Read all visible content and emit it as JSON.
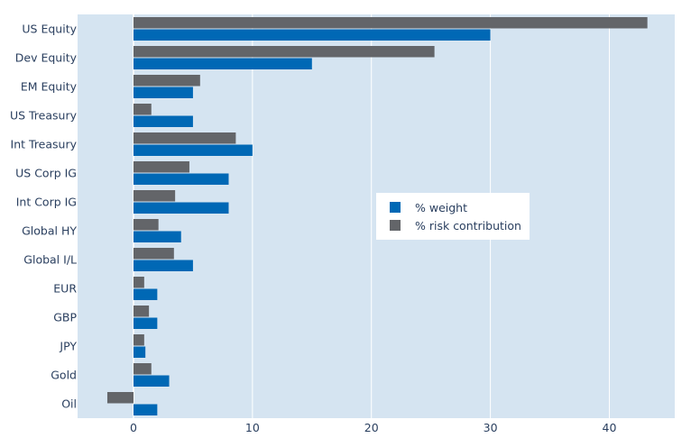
{
  "chart_data": {
    "type": "bar",
    "orientation": "horizontal",
    "categories": [
      "US Equity",
      "Dev Equity",
      "EM Equity",
      "US Treasury",
      "Int Treasury",
      "US Corp IG",
      "Int Corp IG",
      "Global HY",
      "Global I/L",
      "EUR",
      "GBP",
      "JPY",
      "Gold",
      "Oil"
    ],
    "series": [
      {
        "name": "% weight",
        "color": "#0068b5",
        "values": [
          30,
          15,
          5,
          5,
          10,
          8,
          8,
          4,
          5,
          2,
          2,
          1,
          3,
          2
        ]
      },
      {
        "name": "% risk contribution",
        "color": "#636569",
        "values": [
          43.2,
          25.3,
          5.6,
          1.5,
          8.6,
          4.7,
          3.5,
          2.1,
          3.4,
          0.9,
          1.3,
          0.9,
          1.5,
          -2.2
        ]
      }
    ],
    "xlim": [
      -4.7,
      45.5
    ],
    "xticks": [
      0,
      10,
      20,
      30,
      40
    ],
    "xlabel": "",
    "ylabel": "",
    "title": "",
    "grid": true,
    "legend_position": "center-right",
    "plot_background": "#d5e4f1",
    "grid_color": "#ffffff"
  }
}
